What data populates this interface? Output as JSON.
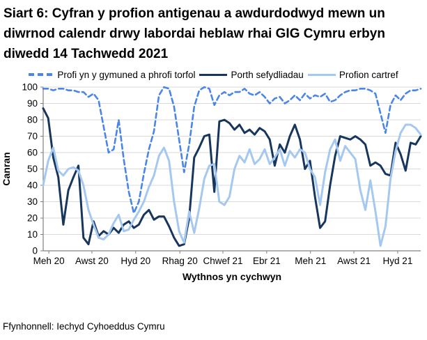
{
  "header": {
    "title": "Siart 6: Cyfran y profion antigenau a awdurdodwyd mewn un diwrnod calendr drwy labordai heblaw rhai GIG Cymru erbyn diwedd 14 Tachwedd 2021"
  },
  "source": {
    "text": "Ffynhonnell: Iechyd Cyhoeddus Cymru"
  },
  "colors": {
    "grid": "#d9d9d9",
    "axis": "#808080",
    "text": "#000000",
    "community": "#4a86e8",
    "porth": "#17365d",
    "cartref": "#a5c8f0"
  },
  "chart_data": {
    "type": "line",
    "title": "Siart 6: Cyfran y profion antigenau a awdurdodwyd mewn un diwrnod calendr drwy labordai heblaw rhai GIG Cymru erbyn diwedd 14 Tachwedd 2021",
    "xlabel": "Wythnos yn cychwyn",
    "ylabel": "Canran",
    "ylim": [
      0,
      100
    ],
    "y_ticks": [
      0,
      10,
      20,
      30,
      40,
      50,
      60,
      70,
      80,
      90,
      100
    ],
    "grid": true,
    "legend_position": "top",
    "x_tick_labels": [
      "Meh 20",
      "Awst 20",
      "Hyd 20",
      "Rhag 20",
      "Chwef 21",
      "Ebr 21",
      "Meh 21",
      "Awst 21",
      "Hyd 21"
    ],
    "x_tick_positions": [
      0.015,
      0.129,
      0.245,
      0.362,
      0.476,
      0.592,
      0.708,
      0.823,
      0.939
    ],
    "x_note": "weekly points, Meh 20 to 14 Tachwedd 2021",
    "series": [
      {
        "name": "Profi yn y gymuned a phrofi torfol",
        "color": "#4a86e8",
        "style": "dashed",
        "values": [
          99,
          99,
          98,
          99,
          99,
          98,
          98,
          97,
          97,
          94,
          96,
          92,
          76,
          60,
          62,
          80,
          56,
          36,
          23,
          30,
          47,
          62,
          73,
          95,
          100,
          99,
          88,
          68,
          48,
          65,
          88,
          98,
          100,
          99,
          89,
          95,
          97,
          95,
          97,
          97,
          99,
          96,
          95,
          97,
          94,
          90,
          93,
          94,
          90,
          92,
          95,
          92,
          96,
          93,
          95,
          94,
          96,
          91,
          92,
          95,
          97,
          98,
          98,
          99,
          99,
          98,
          96,
          84,
          72,
          89,
          95,
          92,
          96,
          98,
          98,
          99
        ]
      },
      {
        "name": "Porth sefydliadau",
        "color": "#17365d",
        "style": "solid",
        "values": [
          87,
          81,
          57,
          45,
          16,
          37,
          45,
          52,
          8,
          4,
          18,
          9,
          12,
          10,
          14,
          11,
          16,
          18,
          14,
          16,
          22,
          25,
          19,
          21,
          21,
          15,
          8,
          3,
          4,
          20,
          57,
          63,
          70,
          71,
          36,
          79,
          80,
          78,
          74,
          77,
          72,
          74,
          71,
          75,
          73,
          68,
          52,
          65,
          60,
          70,
          77,
          68,
          50,
          55,
          33,
          14,
          18,
          40,
          58,
          70,
          69,
          68,
          70,
          68,
          65,
          52,
          54,
          52,
          47,
          46,
          66,
          59,
          49,
          66,
          65,
          70
        ]
      },
      {
        "name": "Profion cartref",
        "color": "#a5c8f0",
        "style": "solid",
        "values": [
          40,
          55,
          63,
          49,
          46,
          50,
          51,
          49,
          40,
          25,
          16,
          8,
          7,
          10,
          17,
          22,
          12,
          13,
          19,
          24,
          30,
          39,
          46,
          58,
          63,
          55,
          30,
          12,
          5,
          24,
          11,
          26,
          44,
          52,
          53,
          30,
          28,
          33,
          50,
          58,
          54,
          62,
          53,
          56,
          62,
          53,
          57,
          62,
          52,
          61,
          57,
          62,
          60,
          50,
          45,
          28,
          48,
          62,
          68,
          55,
          64,
          60,
          56,
          37,
          25,
          43,
          24,
          3,
          15,
          44,
          61,
          72,
          77,
          77,
          75,
          71
        ]
      }
    ]
  }
}
